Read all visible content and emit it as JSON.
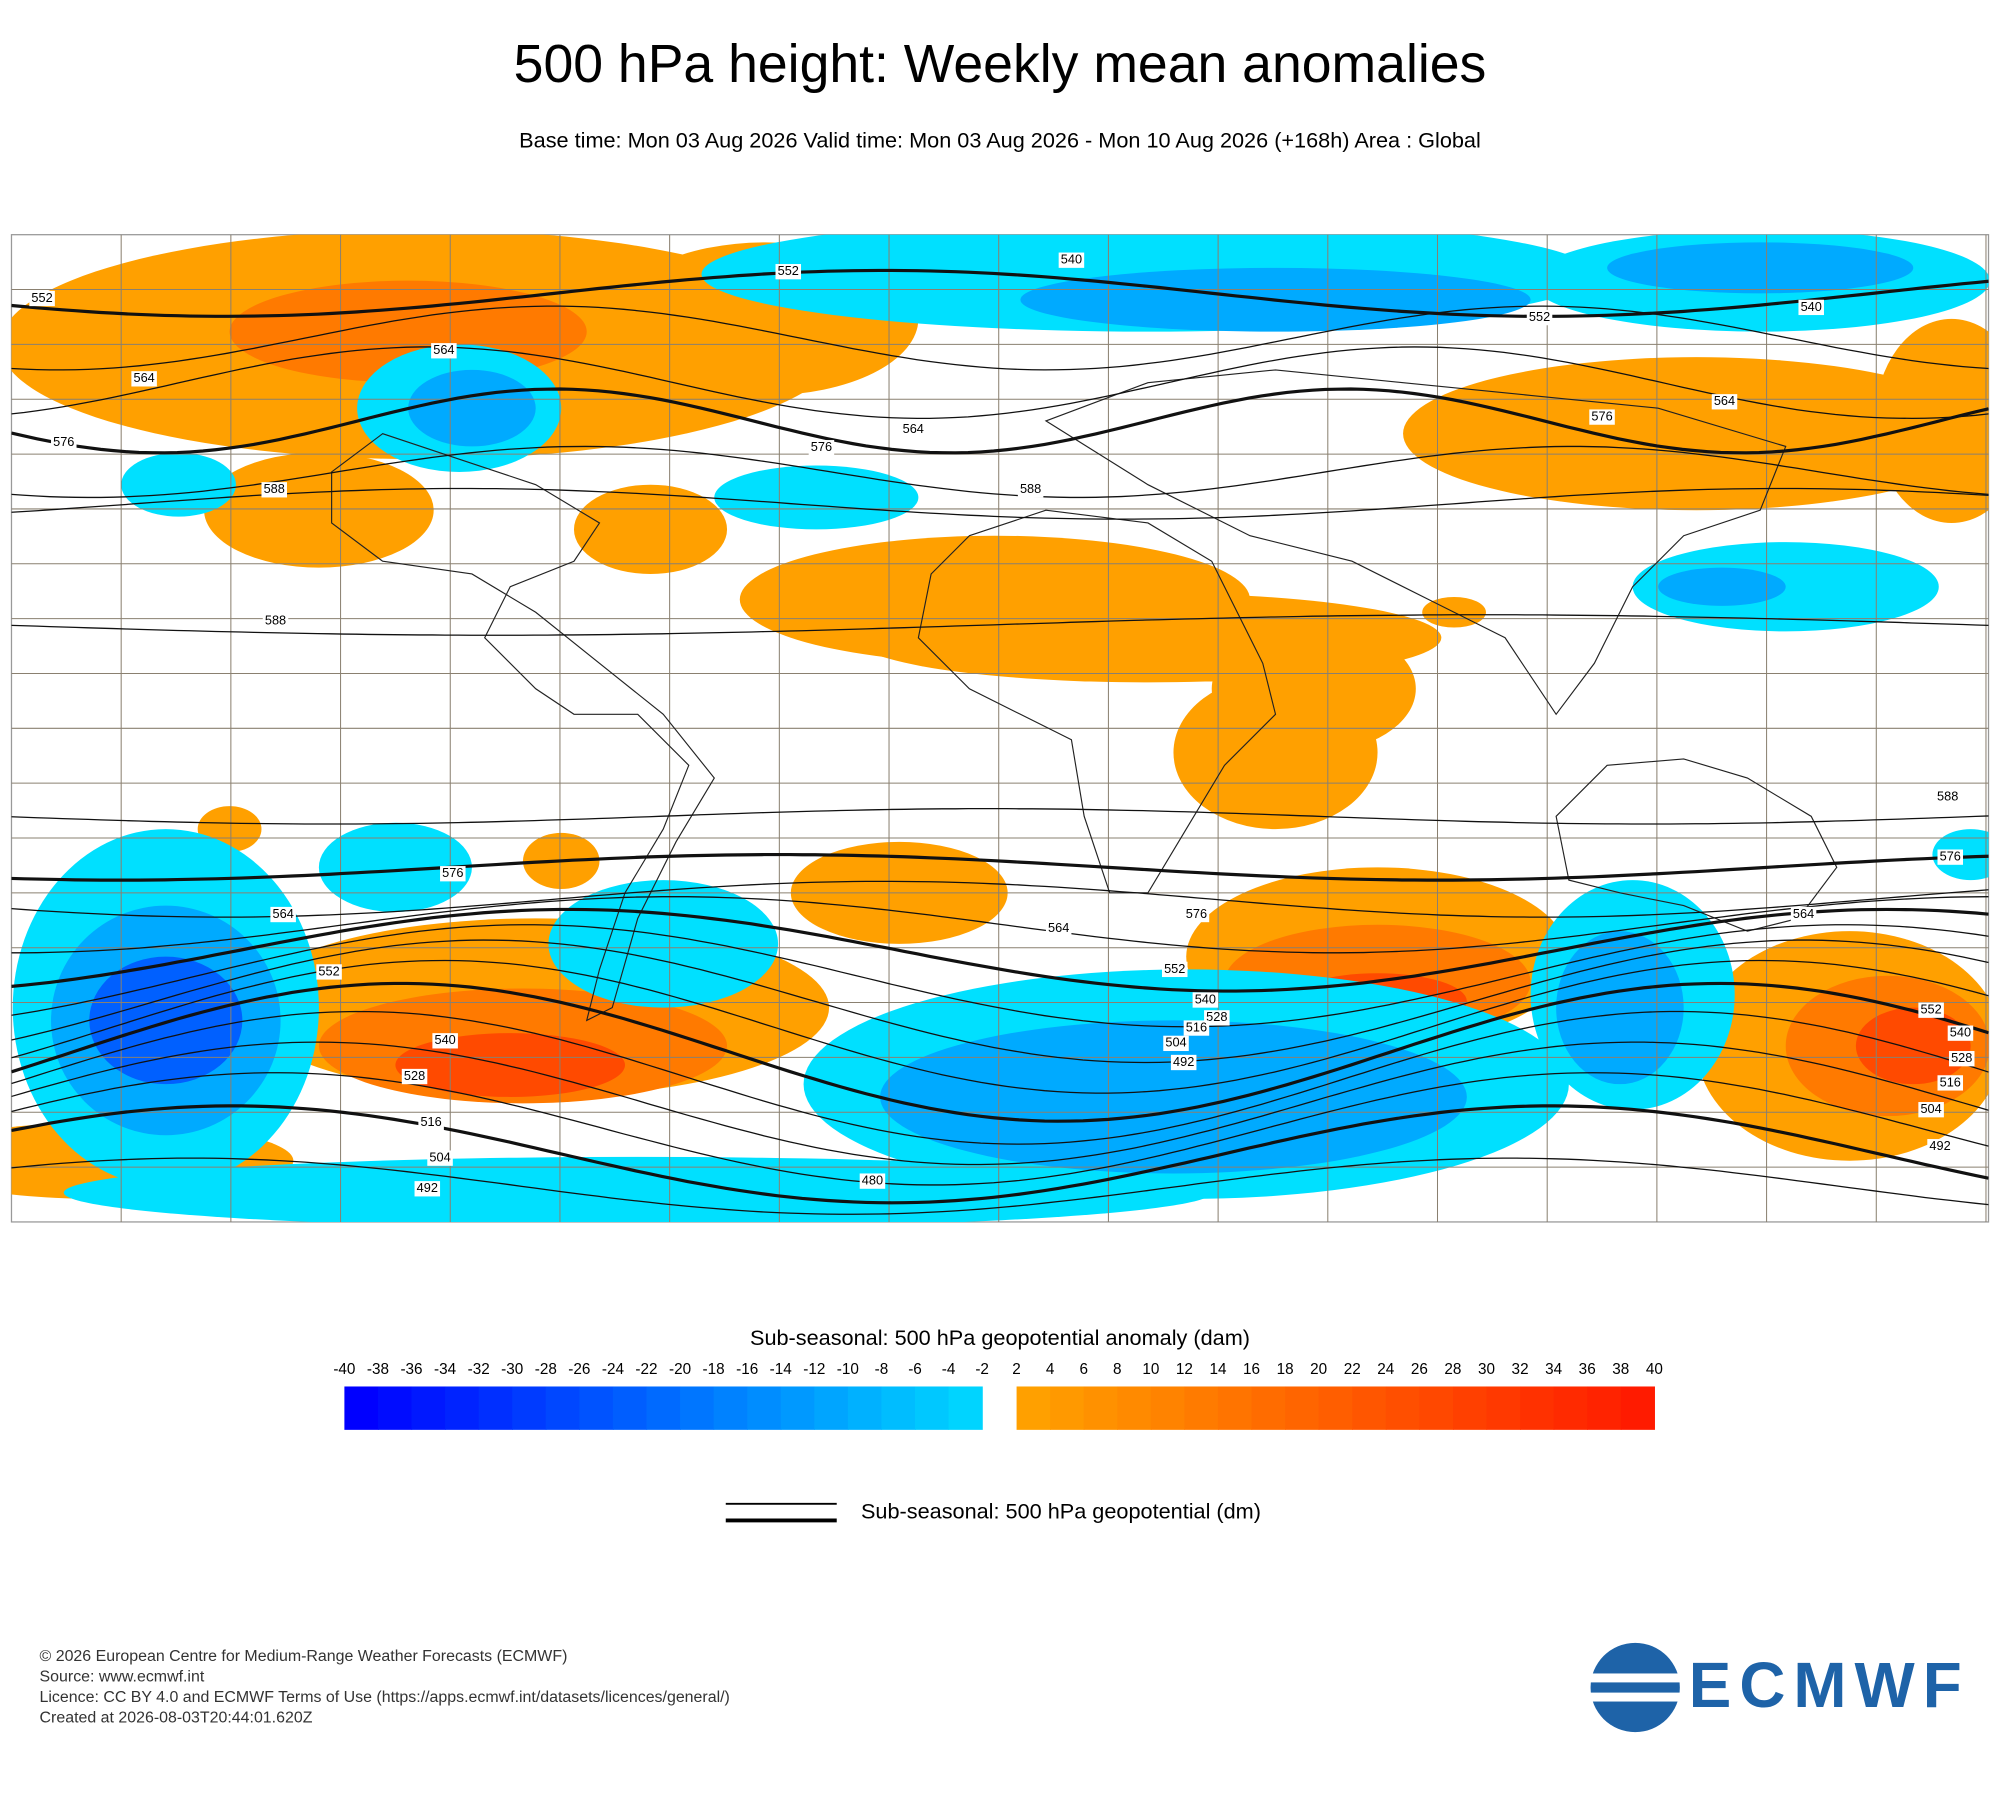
{
  "title": "500 hPa height: Weekly mean anomalies",
  "subtitle": "Base time: Mon 03 Aug 2026 Valid time: Mon 03 Aug 2026 - Mon 10 Aug 2026 (+168h) Area : Global",
  "map": {
    "contour_labels": [
      "552",
      "552",
      "540",
      "552",
      "540",
      "564",
      "576",
      "588",
      "564",
      "576",
      "564",
      "588",
      "576",
      "564",
      "588",
      "588",
      "576",
      "576",
      "564",
      "552",
      "540",
      "528",
      "516",
      "504",
      "492",
      "564",
      "576",
      "552",
      "540",
      "528",
      "516",
      "504",
      "492",
      "480",
      "564",
      "552",
      "540",
      "528",
      "516",
      "504",
      "492"
    ]
  },
  "colorbar": {
    "title": "Sub-seasonal: 500 hPa geopotential anomaly (dam)",
    "ticks": [
      -40,
      -38,
      -36,
      -34,
      -32,
      -30,
      -28,
      -26,
      -24,
      -22,
      -20,
      -18,
      -16,
      -14,
      -12,
      -10,
      -8,
      -6,
      -4,
      -2,
      2,
      4,
      6,
      8,
      10,
      12,
      14,
      16,
      18,
      20,
      22,
      24,
      26,
      28,
      30,
      32,
      34,
      36,
      38,
      40
    ]
  },
  "legend": {
    "label": "Sub-seasonal: 500 hPa geopotential (dm)"
  },
  "footer": [
    "© 2026 European Centre for Medium-Range Weather Forecasts (ECMWF)",
    "Source: www.ecmwf.int",
    "Licence: CC BY 4.0 and ECMWF Terms of Use (https://apps.ecmwf.int/datasets/licences/general/)",
    "Created at 2026-08-03T20:44:01.620Z"
  ],
  "logo": "ECMWF"
}
